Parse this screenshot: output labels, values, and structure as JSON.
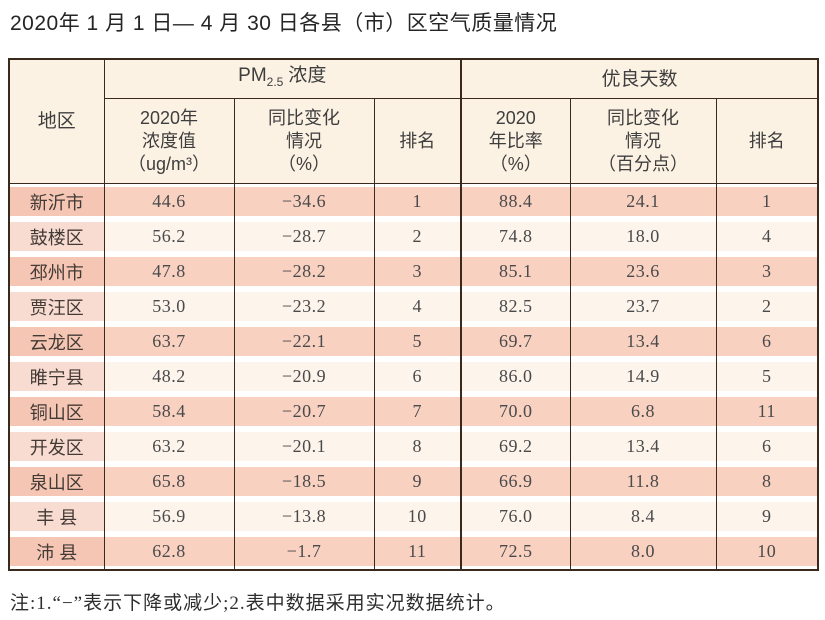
{
  "page_title": "2020年 1 月 1 日— 4 月 30 日各县（市）区空气质量情况",
  "table": {
    "header": {
      "region": "地区",
      "pm_group_main": "PM",
      "pm_group_sub": "2.5",
      "pm_group_rest": "浓度",
      "good_group": "优良天数",
      "pm_value_col": "2020年\n浓度值\n（ug/m³）",
      "pm_change_col": "同比变化\n情况\n（%）",
      "pm_rank_col": "排名",
      "good_ratio_col": "2020\n年比率\n（%）",
      "good_change_col": "同比变化\n情况\n（百分点）",
      "good_rank_col": "排名"
    },
    "rows": [
      {
        "region": "新沂市",
        "pm_value": "44.6",
        "pm_change": "−34.6",
        "pm_rank": "1",
        "good_ratio": "88.4",
        "good_change": "24.1",
        "good_rank": "1"
      },
      {
        "region": "鼓楼区",
        "pm_value": "56.2",
        "pm_change": "−28.7",
        "pm_rank": "2",
        "good_ratio": "74.8",
        "good_change": "18.0",
        "good_rank": "4"
      },
      {
        "region": "邳州市",
        "pm_value": "47.8",
        "pm_change": "−28.2",
        "pm_rank": "3",
        "good_ratio": "85.1",
        "good_change": "23.6",
        "good_rank": "3"
      },
      {
        "region": "贾汪区",
        "pm_value": "53.0",
        "pm_change": "−23.2",
        "pm_rank": "4",
        "good_ratio": "82.5",
        "good_change": "23.7",
        "good_rank": "2"
      },
      {
        "region": "云龙区",
        "pm_value": "63.7",
        "pm_change": "−22.1",
        "pm_rank": "5",
        "good_ratio": "69.7",
        "good_change": "13.4",
        "good_rank": "6"
      },
      {
        "region": "睢宁县",
        "pm_value": "48.2",
        "pm_change": "−20.9",
        "pm_rank": "6",
        "good_ratio": "86.0",
        "good_change": "14.9",
        "good_rank": "5"
      },
      {
        "region": "铜山区",
        "pm_value": "58.4",
        "pm_change": "−20.7",
        "pm_rank": "7",
        "good_ratio": "70.0",
        "good_change": "6.8",
        "good_rank": "11"
      },
      {
        "region": "开发区",
        "pm_value": "63.2",
        "pm_change": "−20.1",
        "pm_rank": "8",
        "good_ratio": "69.2",
        "good_change": "13.4",
        "good_rank": "6"
      },
      {
        "region": "泉山区",
        "pm_value": "65.8",
        "pm_change": "−18.5",
        "pm_rank": "9",
        "good_ratio": "66.9",
        "good_change": "11.8",
        "good_rank": "8"
      },
      {
        "region": "丰 县",
        "pm_value": "56.9",
        "pm_change": "−13.8",
        "pm_rank": "10",
        "good_ratio": "76.0",
        "good_change": "8.4",
        "good_rank": "9"
      },
      {
        "region": "沛 县",
        "pm_value": "62.8",
        "pm_change": "−1.7",
        "pm_rank": "11",
        "good_ratio": "72.5",
        "good_change": "8.0",
        "good_rank": "10"
      }
    ]
  },
  "footnote": "注:1.“−”表示下降或减少;2.表中数据采用实况数据统计。",
  "colors": {
    "border_dark": "#3a2a1e",
    "header_bg": "#fcf2e4",
    "row_odd_region_bg": "#f5c6b4",
    "row_odd_data_bg": "#f8d1c1",
    "row_even_region_bg": "#f9dcd1",
    "row_even_data_bg": "#fdf4ec"
  }
}
